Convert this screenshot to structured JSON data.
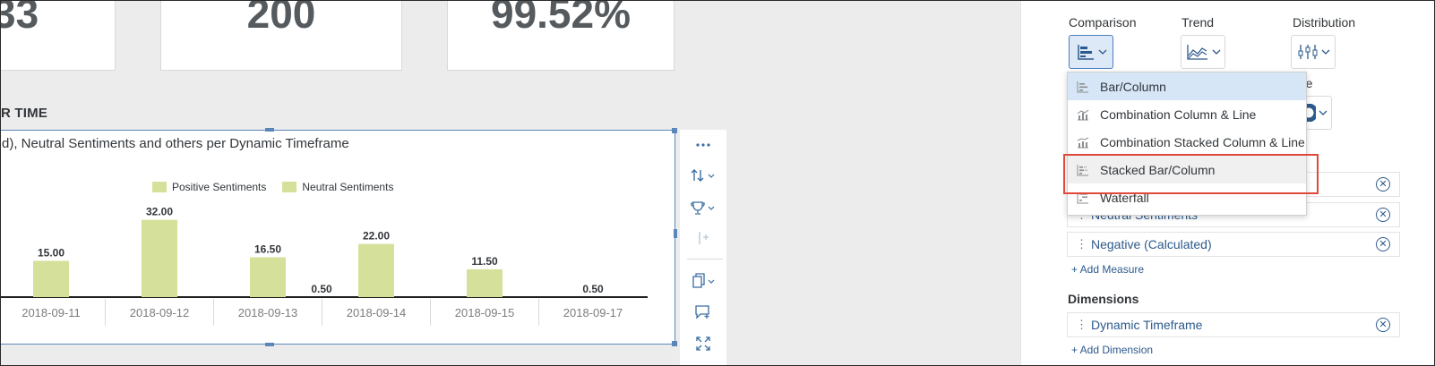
{
  "kpis": [
    {
      "value": "33"
    },
    {
      "value": "200"
    },
    {
      "value": "99.52%"
    }
  ],
  "section": {
    "title": "R TIME"
  },
  "chart_widget": {
    "title": "d), Neutral Sentiments and others per Dynamic Timeframe"
  },
  "chart_data": {
    "type": "bar",
    "categories": [
      "2018-09-11",
      "2018-09-12",
      "2018-09-13",
      "2018-09-14",
      "2018-09-15",
      "2018-09-17"
    ],
    "series": [
      {
        "name": "Positive Sentiments",
        "values": [
          15.0,
          32.0,
          16.5,
          22.0,
          11.5,
          0.0
        ]
      },
      {
        "name": "Neutral Sentiments",
        "values": [
          null,
          null,
          0.5,
          null,
          null,
          0.5
        ]
      }
    ],
    "data_labels": [
      {
        "category": "2018-09-11",
        "text": "15.00"
      },
      {
        "category": "2018-09-12",
        "text": "32.00"
      },
      {
        "category": "2018-09-13",
        "text": "16.50"
      },
      {
        "category": "2018-09-13",
        "text": "0.50"
      },
      {
        "category": "2018-09-14",
        "text": "22.00"
      },
      {
        "category": "2018-09-15",
        "text": "11.50"
      },
      {
        "category": "2018-09-17",
        "text": "0.50"
      }
    ],
    "legend_position": "top",
    "grid": false,
    "colors": {
      "bar": "#d5e09a",
      "axis": "#1f1f1f"
    }
  },
  "toolbar": {
    "icons": [
      "more-icon",
      "sort-icon",
      "ranking-icon",
      "reference-line-icon",
      "copy-icon",
      "comment-icon",
      "fullscreen-icon"
    ]
  },
  "builder": {
    "categories": [
      {
        "label": "Comparison"
      },
      {
        "label": "Trend"
      },
      {
        "label": "Distribution"
      }
    ],
    "partial_label": "re",
    "dropdown": {
      "items": [
        {
          "label": "Bar/Column",
          "state": "selected"
        },
        {
          "label": "Combination Column & Line",
          "state": "normal"
        },
        {
          "label": "Combination Stacked Column & Line",
          "state": "normal"
        },
        {
          "label": "Stacked Bar/Column",
          "state": "hover"
        },
        {
          "label": "Waterfall",
          "state": "normal"
        }
      ]
    },
    "measures": [
      {
        "label": "Neutral Sentiments"
      },
      {
        "label": "Negative (Calculated)"
      }
    ],
    "add_measure": "+ Add Measure",
    "dimensions_heading": "Dimensions",
    "dimensions": [
      {
        "label": "Dynamic Timeframe"
      }
    ],
    "add_dimension": "+ Add Dimension"
  },
  "colors": {
    "accent": "#2d5a8c",
    "highlight": "#e04a3a",
    "selected_bg": "#d6e6f6"
  }
}
